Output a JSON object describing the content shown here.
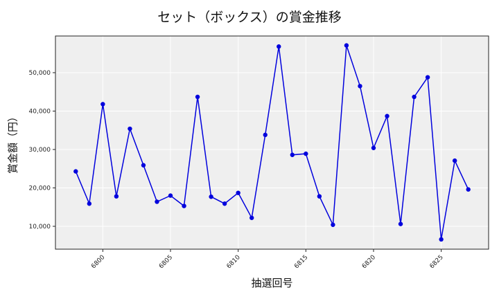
{
  "chart_data": {
    "type": "line",
    "title": "セット（ボックス）の賞金推移",
    "xlabel": "抽選回号",
    "ylabel": "賞金額（円）",
    "x": [
      6798,
      6799,
      6800,
      6801,
      6802,
      6803,
      6804,
      6805,
      6806,
      6807,
      6808,
      6809,
      6810,
      6811,
      6812,
      6813,
      6814,
      6815,
      6816,
      6817,
      6818,
      6819,
      6820,
      6821,
      6822,
      6823,
      6824,
      6825,
      6826,
      6827
    ],
    "series": [
      {
        "name": "セット（ボックス）",
        "color": "#0000dd",
        "values": [
          24300,
          15900,
          41800,
          17800,
          35400,
          25900,
          16400,
          18000,
          15300,
          43700,
          17700,
          15900,
          18700,
          12200,
          33800,
          56800,
          28600,
          28900,
          17800,
          10400,
          57100,
          46500,
          30400,
          38700,
          10600,
          43700,
          48800,
          6600,
          27100,
          19600
        ]
      }
    ],
    "xticks": [
      6800,
      6805,
      6810,
      6815,
      6820,
      6825
    ],
    "yticks": [
      10000,
      20000,
      30000,
      40000,
      50000
    ],
    "ytick_labels": [
      "10,000",
      "20,000",
      "30,000",
      "40,000",
      "50,000"
    ],
    "xlim": [
      6796.5,
      6828.5
    ],
    "ylim": [
      4050,
      59550
    ],
    "grid": true,
    "legend": null,
    "background": "#efefef"
  }
}
